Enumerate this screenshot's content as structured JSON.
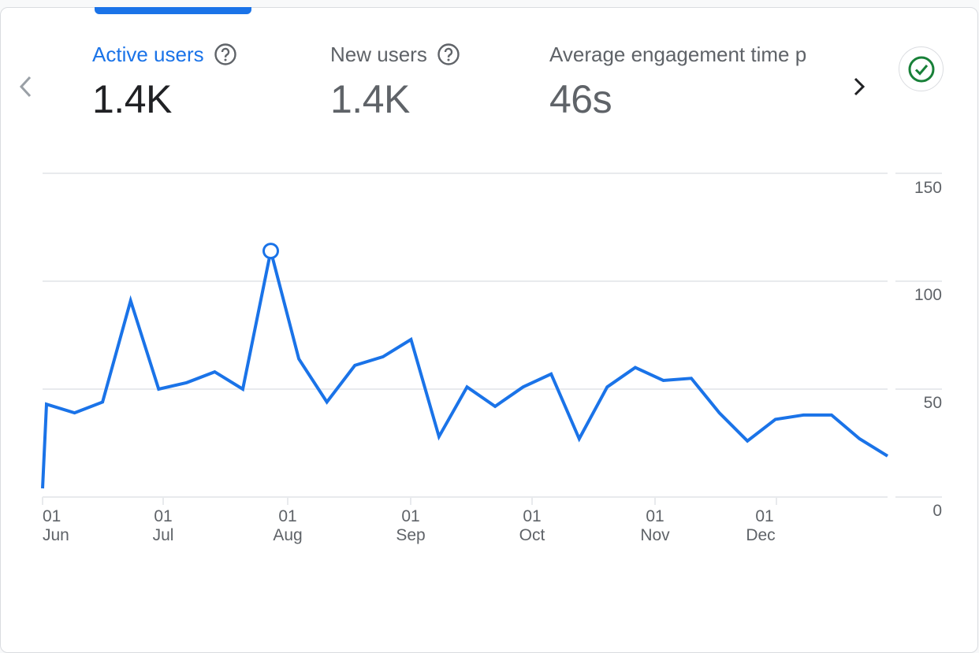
{
  "header": {
    "metrics": [
      {
        "label": "Active users",
        "value": "1.4K",
        "active": true
      },
      {
        "label": "New users",
        "value": "1.4K",
        "active": false
      },
      {
        "label": "Average engagement time p",
        "value": "46s",
        "active": false
      }
    ],
    "prev_icon": "chevron-left-icon",
    "next_icon": "chevron-right-icon",
    "help_icon": "help-circle-icon",
    "status_icon": "check-circle-icon"
  },
  "colors": {
    "accent": "#1a73e8",
    "line": "#1a73e8",
    "status": "#188038",
    "grid": "#e8eaed",
    "text": "#5f6368"
  },
  "chart_data": {
    "type": "line",
    "title": "Active users",
    "xlabel": "",
    "ylabel": "",
    "ylim": [
      0,
      150
    ],
    "y_ticks": [
      "0",
      "50",
      "100",
      "150"
    ],
    "y_axis_position": "right",
    "grid": true,
    "x_tick_labels": [
      {
        "day": "01",
        "month": "Jun"
      },
      {
        "day": "01",
        "month": "Jul"
      },
      {
        "day": "01",
        "month": "Aug"
      },
      {
        "day": "01",
        "month": "Sep"
      },
      {
        "day": "01",
        "month": "Oct"
      },
      {
        "day": "01",
        "month": "Nov"
      },
      {
        "day": "01",
        "month": "Dec"
      }
    ],
    "series": [
      {
        "name": "Active users",
        "values": [
          4,
          43,
          39,
          44,
          91,
          50,
          53,
          58,
          50,
          114,
          64,
          44,
          61,
          65,
          73,
          28,
          51,
          42,
          51,
          57,
          27,
          51,
          60,
          54,
          55,
          39,
          26,
          36,
          38,
          38,
          27,
          19
        ],
        "highlighted_point_index": 9
      }
    ]
  }
}
